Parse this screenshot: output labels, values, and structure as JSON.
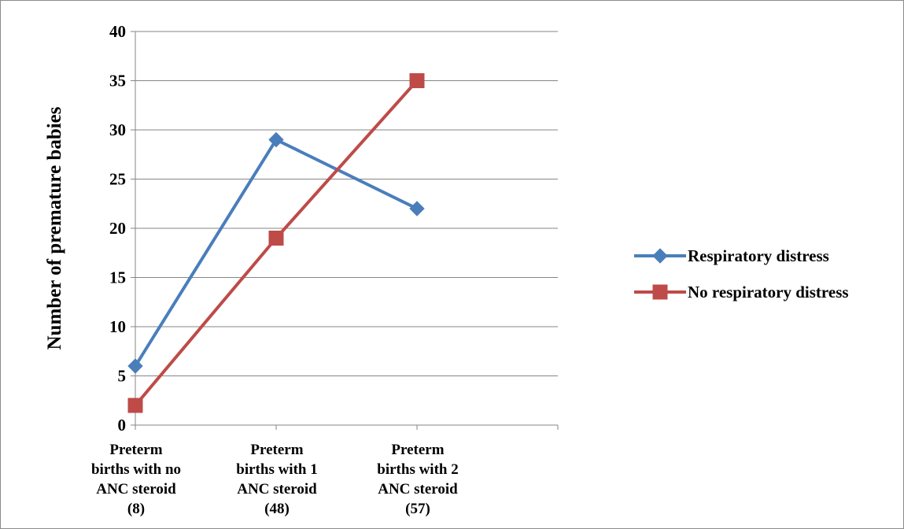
{
  "chart_data": {
    "type": "line",
    "categories": [
      [
        "Preterm",
        "births with no",
        "ANC steroid",
        "(8)"
      ],
      [
        "Preterm",
        "births with 1",
        "ANC steroid",
        "(48)"
      ],
      [
        "Preterm",
        "births with 2",
        "ANC steroid",
        "(57)"
      ]
    ],
    "series": [
      {
        "name": "Respiratory distress",
        "values": [
          6,
          29,
          22
        ],
        "color": "#4a7ebb",
        "marker": "diamond"
      },
      {
        "name": "No respiratory distress",
        "values": [
          2,
          19,
          35
        ],
        "color": "#be4b48",
        "marker": "square"
      }
    ],
    "ylabel": "Number of premature babies",
    "xlabel": "",
    "ylim": [
      0,
      40
    ],
    "yticks": [
      0,
      5,
      10,
      15,
      20,
      25,
      30,
      35,
      40
    ],
    "grid": true,
    "legend": "right"
  }
}
